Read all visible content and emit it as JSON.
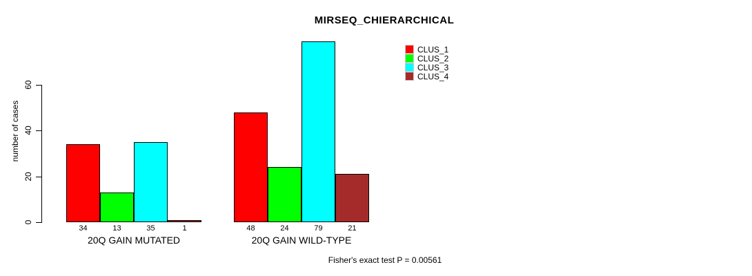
{
  "chart_data": {
    "type": "bar",
    "title": "MIRSEQ_CHIERARCHICAL",
    "ylabel": "number of cases",
    "xlabel": "",
    "footer": "Fisher's exact test P = 0.00561",
    "yticks": [
      0,
      20,
      40,
      60
    ],
    "ylim": [
      0,
      79
    ],
    "grid": false,
    "legend_position": "top-right",
    "categories": [
      "20Q GAIN MUTATED",
      "20Q GAIN WILD-TYPE"
    ],
    "series": [
      {
        "name": "CLUS_1",
        "color": "#ff0000",
        "values": [
          34,
          48
        ]
      },
      {
        "name": "CLUS_2",
        "color": "#00ff00",
        "values": [
          13,
          24
        ]
      },
      {
        "name": "CLUS_3",
        "color": "#00ffff",
        "values": [
          35,
          79
        ]
      },
      {
        "name": "CLUS_4",
        "color": "#a52a2a",
        "values": [
          1,
          21
        ]
      }
    ]
  }
}
